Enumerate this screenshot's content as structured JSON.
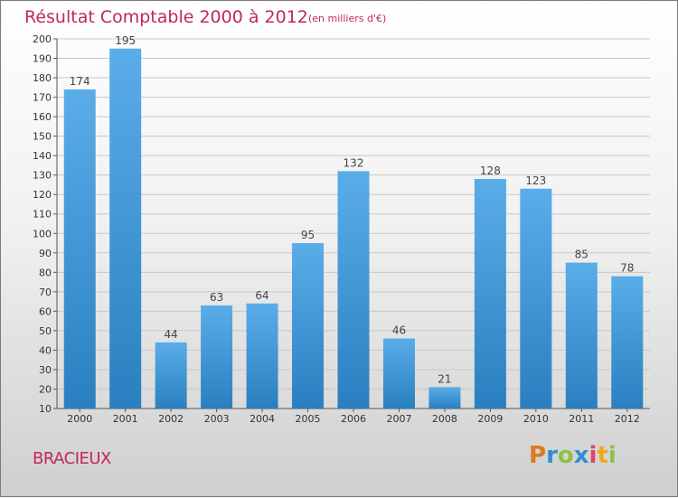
{
  "header": {
    "title": "Résultat Comptable 2000 à 2012",
    "subtitle": "(en milliers d'€)"
  },
  "footer": {
    "place": "BRACIEUX",
    "logo_text": "Proxiti"
  },
  "colors": {
    "bar_top": "#5aade8",
    "bar_bottom": "#2a7fc0",
    "title": "#c0285a",
    "grid": "#c8c8c8"
  },
  "chart_data": {
    "type": "bar",
    "title": "Résultat Comptable 2000 à 2012",
    "subtitle": "(en milliers d'€)",
    "xlabel": "",
    "ylabel": "",
    "categories": [
      "2000",
      "2001",
      "2002",
      "2003",
      "2004",
      "2005",
      "2006",
      "2007",
      "2008",
      "2009",
      "2010",
      "2011",
      "2012"
    ],
    "values": [
      174,
      195,
      44,
      63,
      64,
      95,
      132,
      46,
      21,
      128,
      123,
      85,
      78
    ],
    "ylim": [
      10,
      200
    ],
    "yticks": [
      10,
      20,
      30,
      40,
      50,
      60,
      70,
      80,
      90,
      100,
      110,
      120,
      130,
      140,
      150,
      160,
      170,
      180,
      190,
      200
    ],
    "grid": true
  }
}
